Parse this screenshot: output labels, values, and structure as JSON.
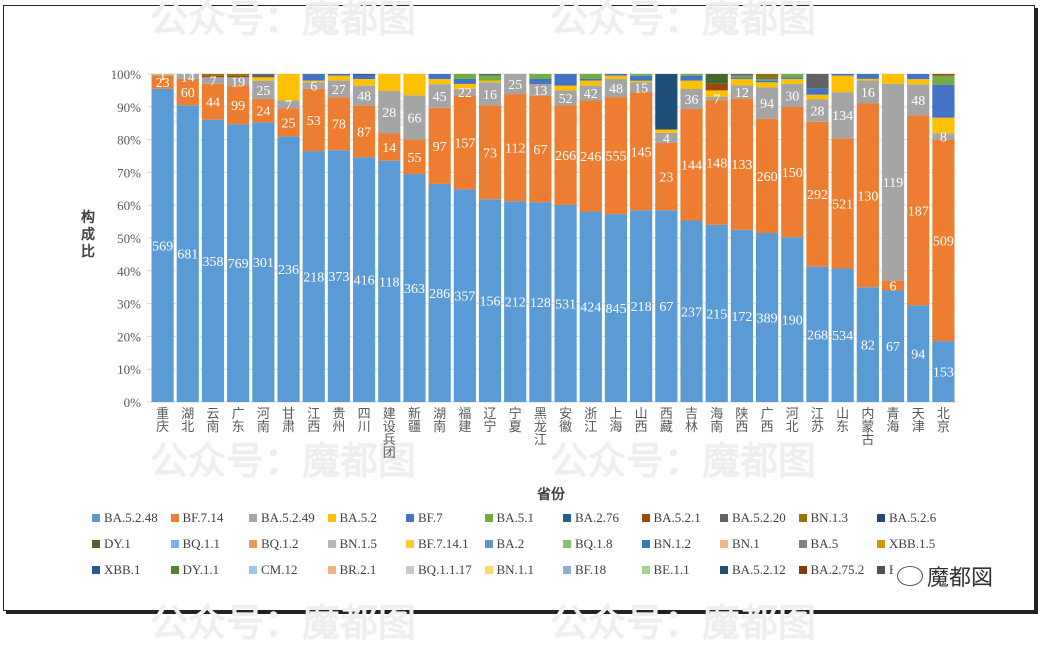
{
  "watermark": "公众号：魔都图",
  "logo_text": "魔都図",
  "chart_data": {
    "type": "bar",
    "stacked": "percent",
    "title": "",
    "xlabel": "省份",
    "ylabel": "构成比",
    "ylim": [
      0,
      100
    ],
    "yticks": [
      "0%",
      "10%",
      "20%",
      "30%",
      "40%",
      "50%",
      "60%",
      "70%",
      "80%",
      "90%",
      "100%"
    ],
    "grid": true,
    "legend_position": "bottom",
    "categories": [
      "重庆",
      "湖北",
      "云南",
      "广东",
      "河南",
      "甘肃",
      "江西",
      "贵州",
      "四川",
      "建设兵团",
      "新疆",
      "湖南",
      "福建",
      "辽宁",
      "宁夏",
      "黑龙江",
      "安徽",
      "浙江",
      "上海",
      "山西",
      "西藏",
      "吉林",
      "海南",
      "陕西",
      "广西",
      "河北",
      "江苏",
      "山东",
      "内蒙古",
      "青海",
      "天津",
      "北京"
    ],
    "series": [
      {
        "name": "BA.5.2.48",
        "color": "#5b9bd5",
        "labels": [
          569,
          681,
          358,
          769,
          301,
          236,
          218,
          373,
          416,
          118,
          363,
          286,
          357,
          156,
          212,
          128,
          531,
          424,
          845,
          218,
          67,
          237,
          215,
          172,
          389,
          190,
          268,
          534,
          82,
          67,
          94,
          153
        ],
        "values": [
          95.5,
          90,
          86.5,
          85.5,
          84,
          81,
          76.5,
          76,
          73.5,
          71,
          69.5,
          64.5,
          64.5,
          61.5,
          60,
          60,
          59.5,
          57.5,
          57,
          57,
          57,
          54.5,
          54,
          52.5,
          51,
          50,
          42.5,
          40.5,
          35,
          34,
          28,
          19.5
        ]
      },
      {
        "name": "BF.7.14",
        "color": "#ed7d31",
        "labels": [
          23,
          60,
          44,
          99,
          24,
          25,
          53,
          78,
          87,
          14,
          55,
          97,
          157,
          73,
          112,
          67,
          266,
          246,
          555,
          145,
          23,
          144,
          148,
          133,
          260,
          150,
          292,
          521,
          130,
          6,
          187,
          509
        ],
        "values": [
          4,
          8,
          11,
          12,
          7,
          8.5,
          19,
          16,
          15.5,
          8,
          10.5,
          22.5,
          28.5,
          28.5,
          32,
          32,
          30,
          33.5,
          35.5,
          35,
          20,
          33.5,
          38,
          40,
          34.5,
          39.5,
          45.5,
          39.5,
          56,
          3,
          55,
          64.5
        ]
      },
      {
        "name": "BA.5.2.49",
        "color": "#a5a5a5",
        "labels": [
          1,
          14,
          7,
          19,
          25,
          7,
          6,
          27,
          48,
          28,
          66,
          45,
          22,
          16,
          25,
          13,
          52,
          42,
          48,
          15,
          4,
          36,
          7,
          12,
          94,
          30,
          28,
          134,
          16,
          119,
          48,
          8
        ],
        "values": [
          0.3,
          1.5,
          2,
          2.5,
          5.5,
          2.5,
          2,
          5,
          6,
          12.5,
          13.5,
          7,
          2,
          7,
          6,
          3.5,
          4.5,
          4.5,
          5.5,
          3,
          3,
          6,
          1,
          4,
          9.5,
          7,
          7,
          14,
          7,
          60,
          9,
          2
        ]
      },
      {
        "name": "BA.5.2",
        "color": "#ffc000",
        "values": [
          0.2,
          0,
          0,
          0,
          1,
          8,
          0.5,
          1.5,
          2,
          5,
          6.5,
          1.5,
          1.5,
          0.5,
          0,
          0,
          1.5,
          1.5,
          1,
          0.5,
          1,
          2.5,
          2,
          2,
          1.5,
          1.5,
          1.5,
          5,
          0.5,
          3,
          1.5,
          5
        ]
      },
      {
        "name": "BF.7",
        "color": "#4472c4",
        "values": [
          0,
          0,
          0,
          0,
          0,
          0,
          2,
          0.5,
          1,
          0,
          0,
          1.5,
          1.5,
          0,
          0,
          1.5,
          3.5,
          0.5,
          0.5,
          1.5,
          0,
          1.5,
          0,
          0.5,
          0.5,
          0.5,
          2,
          0.5,
          1.5,
          0,
          1.5,
          10.5
        ]
      },
      {
        "name": "BA.5.1",
        "color": "#70ad47",
        "values": [
          0,
          0,
          0,
          0,
          0,
          0,
          0,
          0,
          0,
          0,
          0,
          0,
          1.5,
          1.5,
          0,
          1.5,
          0,
          1.5,
          0,
          0.5,
          0,
          0.5,
          0,
          0.5,
          0.5,
          1,
          0,
          0,
          0,
          0,
          0,
          3
        ]
      },
      {
        "name": "BA.2.76",
        "color": "#255e91",
        "values": [
          0,
          0,
          0,
          0,
          0,
          0,
          0,
          0,
          0.5,
          0,
          0,
          0,
          0,
          0,
          0,
          0,
          0,
          0,
          0,
          0,
          0,
          0,
          0,
          0,
          0,
          0,
          0,
          0,
          0,
          0,
          0,
          0
        ]
      },
      {
        "name": "BA.5.2.1",
        "color": "#9e480e",
        "values": [
          0,
          0,
          0.5,
          0.5,
          0,
          0,
          0,
          0,
          0,
          0,
          0,
          0,
          0,
          0,
          0,
          0,
          0,
          0,
          0,
          0,
          0,
          0,
          2,
          0,
          0,
          0,
          0,
          0,
          0,
          0,
          0,
          0.5
        ]
      },
      {
        "name": "BA.5.2.20",
        "color": "#636363",
        "values": [
          0,
          0,
          0,
          0,
          1,
          0,
          0,
          0,
          0,
          0,
          0,
          0,
          0,
          0.5,
          0,
          0,
          0,
          0,
          0,
          0,
          0,
          0,
          0,
          0.5,
          0.5,
          0,
          4.5,
          0,
          0,
          0,
          0,
          0
        ]
      },
      {
        "name": "BN.1.3",
        "color": "#997300",
        "values": [
          0,
          0,
          0.5,
          0.5,
          0,
          0,
          0,
          0,
          0,
          0,
          0,
          0,
          0,
          0,
          0,
          0,
          0,
          0,
          0,
          0,
          0,
          0,
          0,
          0,
          1,
          0,
          0,
          0,
          0,
          0,
          0,
          0
        ]
      },
      {
        "name": "BA.5.2.6",
        "color": "#264478",
        "values": [
          0,
          0,
          0,
          0,
          0,
          0,
          0,
          0,
          0,
          0,
          0,
          0,
          0,
          0,
          0,
          0,
          0,
          0,
          0,
          0,
          0,
          0,
          0,
          0,
          0,
          0,
          0,
          0,
          0,
          0,
          0,
          0
        ]
      },
      {
        "name": "DY.1",
        "color": "#43682b",
        "values": [
          0,
          0,
          0,
          0,
          0,
          0,
          0,
          0,
          0,
          0,
          0,
          0,
          0,
          0,
          0,
          0,
          0,
          0,
          0,
          0,
          0,
          0,
          3,
          0,
          0,
          0,
          0,
          0,
          0,
          0,
          0,
          0
        ]
      },
      {
        "name": "BQ.1.1",
        "color": "#7cafdd",
        "values": [
          0,
          0,
          0,
          0,
          0,
          0,
          0,
          0,
          0,
          0,
          0,
          0,
          0,
          0,
          0,
          0,
          0,
          0,
          0,
          0,
          0,
          0,
          0,
          0,
          0,
          0,
          0,
          0,
          0,
          0,
          0,
          0
        ]
      },
      {
        "name": "BQ.1.2",
        "color": "#f1975a",
        "values": [
          0,
          0,
          0,
          0,
          0,
          0,
          0,
          0,
          0,
          0,
          0,
          0,
          0,
          0,
          0,
          0,
          0,
          0,
          0,
          0,
          0,
          0,
          0,
          0,
          0,
          0,
          0,
          0,
          0,
          0,
          0,
          0
        ]
      },
      {
        "name": "BN.1.5",
        "color": "#b7b7b7",
        "values": [
          0,
          0,
          0,
          0,
          0,
          0,
          0,
          0,
          0,
          0,
          0,
          0,
          0,
          0,
          0,
          0,
          0,
          0,
          0,
          0,
          0,
          0,
          0,
          0,
          0,
          0,
          0,
          0,
          0,
          0,
          0,
          0
        ]
      },
      {
        "name": "BF.7.14.1",
        "color": "#ffcd33",
        "values": [
          0,
          0,
          0,
          0,
          0,
          0,
          0,
          0,
          0,
          0,
          0,
          0,
          0,
          0,
          0,
          0,
          0,
          0,
          0,
          0,
          0,
          0,
          0,
          0,
          0,
          0,
          0,
          0,
          0,
          0,
          0,
          0
        ]
      },
      {
        "name": "BA.2",
        "color": "#698ed0",
        "values": [
          0,
          0,
          0,
          0,
          0,
          0,
          0,
          0,
          0,
          0,
          0,
          0,
          0,
          0,
          0,
          0,
          0,
          0,
          0,
          0,
          0,
          0,
          0,
          0,
          0,
          0,
          0,
          0,
          0,
          0,
          0,
          0
        ]
      },
      {
        "name": "BQ.1.8",
        "color": "#8cc168",
        "values": [
          0,
          0,
          0,
          0,
          0,
          0,
          0,
          0,
          0,
          0,
          0,
          0,
          0,
          0,
          0,
          0,
          0,
          0,
          0,
          0,
          0,
          0,
          0,
          0,
          0,
          0,
          0,
          0,
          0,
          0,
          0,
          0
        ]
      },
      {
        "name": "BN.1.2",
        "color": "#327dc2",
        "values": [
          0,
          0,
          0,
          0,
          0,
          0,
          0,
          0,
          0,
          0,
          0,
          0,
          0,
          0,
          0,
          0,
          0,
          0,
          0,
          0,
          0,
          0,
          0,
          0,
          0,
          0,
          0,
          0,
          0,
          0,
          0,
          0
        ]
      },
      {
        "name": "BN.1",
        "color": "#f4b183",
        "values": [
          0,
          0,
          0,
          0,
          0,
          0,
          0,
          0,
          0,
          0,
          0,
          0,
          0,
          0,
          0,
          0,
          0,
          0,
          0,
          0,
          0,
          0,
          0,
          0,
          0,
          0,
          0,
          0,
          0,
          0,
          0,
          0
        ]
      },
      {
        "name": "BA.5",
        "color": "#848484",
        "values": [
          0,
          0,
          0,
          0,
          0,
          0,
          0,
          0,
          0,
          0,
          0,
          0,
          0,
          0,
          0,
          0,
          0,
          0,
          0,
          0,
          0,
          0,
          0,
          0,
          0,
          0,
          0,
          0,
          0,
          0,
          0,
          0
        ]
      },
      {
        "name": "XBB.1.5",
        "color": "#cc9a06",
        "values": [
          0,
          0,
          0,
          0,
          0,
          0,
          0,
          0,
          0,
          0,
          0,
          0,
          0,
          0,
          0,
          0,
          0,
          0,
          0,
          0,
          0,
          0,
          0,
          0,
          0,
          0,
          0,
          0,
          0,
          0,
          0,
          0
        ]
      },
      {
        "name": "XBB.1",
        "color": "#2f5597",
        "values": [
          0,
          0,
          0,
          0,
          0,
          0,
          0,
          0,
          0,
          0,
          0,
          0,
          0,
          0,
          0,
          0,
          0,
          0,
          0,
          0,
          0,
          0,
          0,
          0,
          0,
          0,
          0,
          0,
          0,
          0,
          0,
          0
        ]
      },
      {
        "name": "DY.1.1",
        "color": "#548235",
        "values": [
          0,
          0,
          0,
          0,
          0,
          0,
          0,
          0,
          0,
          0,
          0,
          0,
          0,
          0,
          0,
          0,
          0,
          0,
          0,
          0,
          0,
          0,
          0,
          0,
          0,
          0,
          0,
          0,
          0,
          0,
          0,
          0
        ]
      },
      {
        "name": "CM.12",
        "color": "#9dc3e6",
        "values": [
          0,
          0,
          0,
          0,
          0,
          0,
          0,
          0,
          0,
          0,
          0,
          0,
          0,
          0,
          0,
          0,
          0,
          0,
          0,
          0,
          0,
          0,
          0,
          0,
          0,
          0,
          0,
          0,
          0,
          0,
          0,
          0
        ]
      },
      {
        "name": "BR.2.1",
        "color": "#f4b183",
        "values": [
          0,
          0,
          0,
          0,
          0,
          0,
          0,
          0,
          0,
          0,
          0,
          0,
          0,
          0,
          0,
          0,
          0,
          0,
          0,
          0,
          0,
          0,
          0,
          0,
          0,
          0,
          0,
          0,
          0,
          0,
          0,
          0
        ]
      },
      {
        "name": "BQ.1.1.17",
        "color": "#c9c9c9",
        "values": [
          0,
          0,
          0,
          0,
          0,
          0,
          0,
          0,
          0,
          0,
          0,
          0,
          0,
          0,
          0,
          0,
          0,
          0,
          0,
          0,
          0,
          0,
          0,
          0,
          0,
          0,
          0,
          0,
          0,
          0,
          0,
          0
        ]
      },
      {
        "name": "BN.1.1",
        "color": "#ffd966",
        "values": [
          0,
          0,
          0,
          0,
          0,
          0,
          0,
          0,
          0,
          0,
          0,
          0,
          0,
          0,
          0,
          0,
          0,
          0,
          0,
          0,
          0,
          0,
          0,
          0,
          0,
          0,
          0,
          0,
          0,
          0,
          0,
          0
        ]
      },
      {
        "name": "BF.18",
        "color": "#8faadc",
        "values": [
          0,
          0,
          0,
          0,
          0,
          0,
          0,
          0,
          0,
          0,
          0,
          0,
          0,
          0,
          0,
          0,
          0,
          0,
          0,
          0,
          0,
          0,
          0,
          0,
          0,
          0,
          0,
          0,
          0,
          0,
          0,
          0
        ]
      },
      {
        "name": "BE.1.1",
        "color": "#a9d18e",
        "values": [
          0,
          0,
          0,
          0,
          0,
          0,
          0,
          0,
          0,
          0,
          0,
          0,
          0,
          0,
          0,
          0,
          0,
          0,
          0,
          0,
          0,
          0,
          0,
          0,
          0,
          0,
          0,
          0,
          0,
          0,
          0,
          0
        ]
      },
      {
        "name": "BA.5.2.12",
        "color": "#1f4e79",
        "values": [
          0,
          0,
          0,
          0,
          0,
          0,
          0,
          0,
          0,
          0,
          0,
          0,
          0,
          0,
          0,
          0,
          0,
          0,
          0,
          0,
          16.5,
          0,
          0,
          0,
          0,
          0,
          0,
          0,
          0,
          0,
          0,
          0
        ]
      },
      {
        "name": "BA.2.75.2",
        "color": "#843c0c",
        "values": [
          0,
          0,
          0,
          0,
          0,
          0,
          0,
          0,
          0,
          0,
          0,
          0,
          0,
          0,
          0,
          0,
          0,
          0,
          0,
          0,
          0,
          0,
          0,
          0,
          0,
          0,
          0,
          0,
          0,
          0,
          0,
          0
        ]
      },
      {
        "name": "BA.2.75",
        "color": "#525252",
        "values": [
          0,
          0,
          0,
          0,
          0,
          0,
          0,
          0,
          0,
          0,
          0,
          0,
          0,
          0,
          0,
          0,
          0,
          0,
          0,
          0,
          0,
          0,
          0,
          0,
          0,
          0,
          0,
          0,
          0,
          0,
          0,
          0
        ]
      }
    ]
  }
}
